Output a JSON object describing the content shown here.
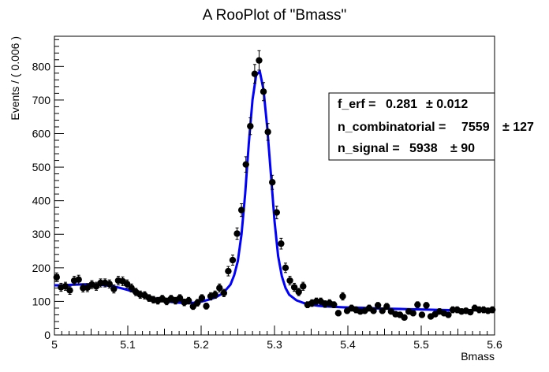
{
  "chart_data": {
    "type": "scatter",
    "title": "A RooPlot of \"Bmass\"",
    "xlabel": "Bmass",
    "ylabel": "Events / ( 0.006 )",
    "xlim": [
      5.0,
      5.6
    ],
    "ylim": [
      0,
      890
    ],
    "x_ticks": [
      "5",
      "5.1",
      "5.2",
      "5.3",
      "5.4",
      "5.5",
      "5.6"
    ],
    "y_ticks": [
      "0",
      "100",
      "200",
      "300",
      "400",
      "500",
      "600",
      "700",
      "800"
    ],
    "series": [
      {
        "kind": "data-with-error-bars",
        "color": "#000000",
        "x": [
          5.003,
          5.009,
          5.015,
          5.021,
          5.027,
          5.033,
          5.039,
          5.045,
          5.051,
          5.057,
          5.063,
          5.069,
          5.075,
          5.081,
          5.087,
          5.093,
          5.099,
          5.105,
          5.111,
          5.117,
          5.123,
          5.129,
          5.135,
          5.141,
          5.147,
          5.153,
          5.159,
          5.165,
          5.171,
          5.177,
          5.183,
          5.189,
          5.195,
          5.201,
          5.207,
          5.213,
          5.219,
          5.225,
          5.231,
          5.237,
          5.243,
          5.249,
          5.255,
          5.261,
          5.267,
          5.273,
          5.279,
          5.285,
          5.291,
          5.297,
          5.303,
          5.309,
          5.315,
          5.321,
          5.327,
          5.333,
          5.339,
          5.345,
          5.351,
          5.357,
          5.363,
          5.369,
          5.375,
          5.381,
          5.387,
          5.393,
          5.399,
          5.405,
          5.411,
          5.417,
          5.423,
          5.429,
          5.435,
          5.441,
          5.447,
          5.453,
          5.459,
          5.465,
          5.471,
          5.477,
          5.483,
          5.489,
          5.495,
          5.501,
          5.507,
          5.513,
          5.519,
          5.525,
          5.531,
          5.537,
          5.543,
          5.549,
          5.555,
          5.561,
          5.567,
          5.573,
          5.579,
          5.585,
          5.591,
          5.597
        ],
        "y": [
          172,
          142,
          145,
          133,
          162,
          165,
          140,
          141,
          150,
          145,
          155,
          155,
          152,
          137,
          162,
          160,
          152,
          140,
          128,
          120,
          118,
          110,
          105,
          102,
          108,
          100,
          108,
          102,
          110,
          97,
          102,
          85,
          96,
          110,
          86,
          115,
          120,
          140,
          125,
          190,
          223,
          302,
          372,
          508,
          622,
          778,
          818,
          725,
          605,
          455,
          365,
          272,
          200,
          162,
          142,
          128,
          145,
          90,
          95,
          100,
          100,
          92,
          95,
          90,
          65,
          115,
          72,
          80,
          75,
          70,
          72,
          80,
          72,
          88,
          72,
          85,
          70,
          62,
          60,
          52,
          70,
          65,
          90,
          60,
          88,
          55,
          62,
          70,
          65,
          60,
          75,
          75,
          70,
          72,
          68,
          80,
          75,
          75,
          72,
          75
        ],
        "yerr": [
          13,
          12,
          12,
          12,
          13,
          13,
          12,
          12,
          12,
          12,
          12,
          12,
          12,
          12,
          13,
          13,
          12,
          12,
          11,
          11,
          11,
          10,
          10,
          10,
          10,
          10,
          10,
          10,
          10,
          10,
          10,
          9,
          10,
          10,
          9,
          11,
          11,
          12,
          11,
          14,
          15,
          17,
          19,
          23,
          25,
          28,
          29,
          27,
          25,
          21,
          19,
          16,
          14,
          13,
          12,
          11,
          12,
          9,
          10,
          10,
          10,
          10,
          10,
          9,
          8,
          11,
          8,
          9,
          9,
          8,
          8,
          9,
          8,
          9,
          8,
          9,
          8,
          8,
          8,
          7,
          8,
          8,
          9,
          8,
          9,
          7,
          8,
          8,
          8,
          8,
          9,
          9,
          8,
          8,
          8,
          9,
          9,
          9,
          8,
          9
        ]
      },
      {
        "kind": "fit-curve",
        "color": "#0000ff",
        "x": [
          5.0,
          5.01,
          5.02,
          5.03,
          5.04,
          5.05,
          5.06,
          5.07,
          5.08,
          5.09,
          5.1,
          5.11,
          5.12,
          5.13,
          5.14,
          5.15,
          5.16,
          5.17,
          5.18,
          5.19,
          5.2,
          5.21,
          5.22,
          5.23,
          5.24,
          5.245,
          5.25,
          5.255,
          5.26,
          5.265,
          5.27,
          5.275,
          5.28,
          5.285,
          5.29,
          5.295,
          5.3,
          5.305,
          5.31,
          5.315,
          5.32,
          5.33,
          5.34,
          5.35,
          5.36,
          5.37,
          5.38,
          5.39,
          5.4,
          5.42,
          5.44,
          5.46,
          5.48,
          5.5,
          5.52,
          5.54,
          5.56,
          5.58,
          5.6
        ],
        "y": [
          148,
          148,
          149,
          150,
          151,
          151,
          150,
          148,
          145,
          140,
          134,
          127,
          120,
          113,
          107,
          102,
          98,
          96,
          95,
          96,
          99,
          105,
          112,
          125,
          150,
          178,
          220,
          300,
          420,
          570,
          700,
          775,
          785,
          730,
          620,
          480,
          340,
          235,
          175,
          140,
          120,
          103,
          95,
          90,
          87,
          85,
          84,
          83,
          82,
          81,
          79,
          78,
          77,
          76,
          75,
          74,
          74,
          74,
          74
        ]
      }
    ],
    "stats_box": {
      "lines": [
        {
          "name": "f_erf =",
          "value": "0.281",
          "error": "± 0.012"
        },
        {
          "name": "n_combinatorial =",
          "value": "7559",
          "error": "± 127"
        },
        {
          "name": "n_signal =",
          "value": "5938",
          "error": "± 90"
        }
      ]
    }
  }
}
